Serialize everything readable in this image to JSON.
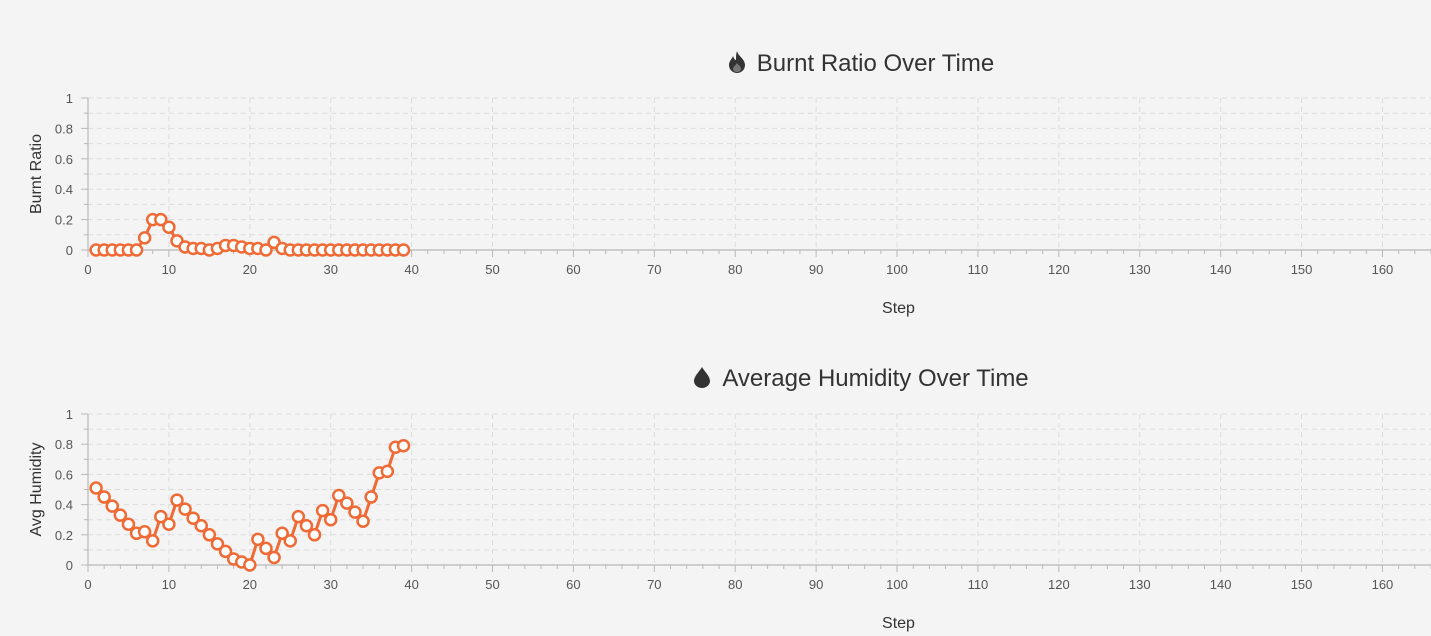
{
  "charts": [
    {
      "icon": "flame-icon",
      "title": "Burnt Ratio Over Time"
    },
    {
      "icon": "droplet-icon",
      "title": "Average Humidity Over Time"
    }
  ],
  "colors": {
    "series": "#ef6a35",
    "marker_fill": "#ffffff",
    "grid": "#dcdcdc",
    "axis": "#b8b8b8",
    "background": "#f4f4f4",
    "icon": "#333333"
  },
  "chart_data": [
    {
      "type": "line",
      "title": "Burnt Ratio Over Time",
      "xlabel": "Step",
      "ylabel": "Burnt Ratio",
      "xlim": [
        0,
        166
      ],
      "ylim": [
        0,
        1
      ],
      "xticks": [
        0,
        10,
        20,
        30,
        40,
        50,
        60,
        70,
        80,
        90,
        100,
        110,
        120,
        130,
        140,
        150,
        160
      ],
      "yticks": [
        0,
        0.2,
        0.4,
        0.6,
        0.8,
        1
      ],
      "ytick_labels": [
        "0",
        "0.2",
        "0.4",
        "0.6",
        "0.8",
        "1"
      ],
      "grid": true,
      "legend": "none",
      "series": [
        {
          "x": [
            1,
            2,
            3,
            4,
            5,
            6,
            7,
            8,
            9,
            10,
            11,
            12,
            13,
            14,
            15,
            16,
            17,
            18,
            19,
            20,
            21,
            22,
            23,
            24,
            25,
            26,
            27,
            28,
            29,
            30,
            31,
            32,
            33,
            34,
            35,
            36,
            37,
            38,
            39
          ],
          "y": [
            0,
            0,
            0,
            0,
            0,
            0,
            0.08,
            0.2,
            0.2,
            0.15,
            0.06,
            0.02,
            0.01,
            0.01,
            0,
            0.01,
            0.03,
            0.03,
            0.02,
            0.01,
            0.01,
            0,
            0.05,
            0.01,
            0,
            0,
            0,
            0,
            0,
            0,
            0,
            0,
            0,
            0,
            0,
            0,
            0,
            0,
            0
          ]
        }
      ]
    },
    {
      "type": "line",
      "title": "Average Humidity Over Time",
      "xlabel": "Step",
      "ylabel": "Avg Humidity",
      "xlim": [
        0,
        166
      ],
      "ylim": [
        0,
        1
      ],
      "xticks": [
        0,
        10,
        20,
        30,
        40,
        50,
        60,
        70,
        80,
        90,
        100,
        110,
        120,
        130,
        140,
        150,
        160
      ],
      "yticks": [
        0,
        0.2,
        0.4,
        0.6,
        0.8,
        1
      ],
      "ytick_labels": [
        "0",
        "0.2",
        "0.4",
        "0.6",
        "0.8",
        "1"
      ],
      "grid": true,
      "legend": "none",
      "series": [
        {
          "x": [
            1,
            2,
            3,
            4,
            5,
            6,
            7,
            8,
            9,
            10,
            11,
            12,
            13,
            14,
            15,
            16,
            17,
            18,
            19,
            20,
            21,
            22,
            23,
            24,
            25,
            26,
            27,
            28,
            29,
            30,
            31,
            32,
            33,
            34,
            35,
            36,
            37,
            38,
            39
          ],
          "y": [
            0.51,
            0.45,
            0.39,
            0.33,
            0.27,
            0.21,
            0.22,
            0.16,
            0.32,
            0.27,
            0.43,
            0.37,
            0.31,
            0.26,
            0.2,
            0.14,
            0.09,
            0.04,
            0.02,
            0.0,
            0.17,
            0.11,
            0.05,
            0.21,
            0.16,
            0.32,
            0.26,
            0.2,
            0.36,
            0.3,
            0.46,
            0.41,
            0.35,
            0.29,
            0.45,
            0.61,
            0.62,
            0.78,
            0.79
          ]
        }
      ]
    }
  ]
}
